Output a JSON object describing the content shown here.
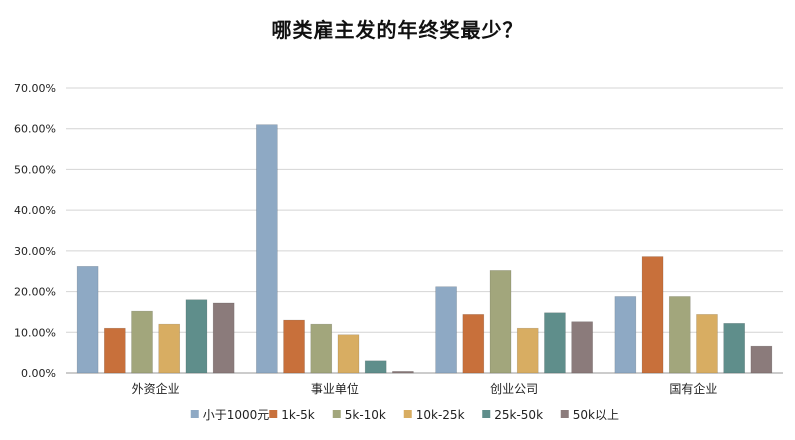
{
  "chart_data": {
    "type": "bar",
    "title": "哪类雇主发的年终奖最少？",
    "categories": [
      "外资企业",
      "事业单位",
      "创业公司",
      "国有企业"
    ],
    "series": [
      {
        "name": "小于1000元",
        "color": "#8ea9c4",
        "values": [
          26.2,
          61.0,
          21.2,
          18.8
        ]
      },
      {
        "name": "1k-5k",
        "color": "#c8703b",
        "values": [
          11.0,
          13.0,
          14.4,
          28.6
        ]
      },
      {
        "name": "5k-10k",
        "color": "#a2a67c",
        "values": [
          15.2,
          12.0,
          25.2,
          18.8
        ]
      },
      {
        "name": "10k-25k",
        "color": "#d8ad62",
        "values": [
          12.0,
          9.4,
          11.0,
          14.4
        ]
      },
      {
        "name": "25k-50k",
        "color": "#5f8e8b",
        "values": [
          18.0,
          3.0,
          14.8,
          12.2
        ]
      },
      {
        "name": "50k以上",
        "color": "#8b7b7b",
        "values": [
          17.2,
          0.4,
          12.6,
          6.6
        ]
      }
    ],
    "yticks": [
      "0.00%",
      "10.00%",
      "20.00%",
      "30.00%",
      "40.00%",
      "50.00%",
      "60.00%",
      "70.00%"
    ],
    "ylim": [
      0,
      70
    ],
    "grid": true,
    "legend": "bottom"
  }
}
